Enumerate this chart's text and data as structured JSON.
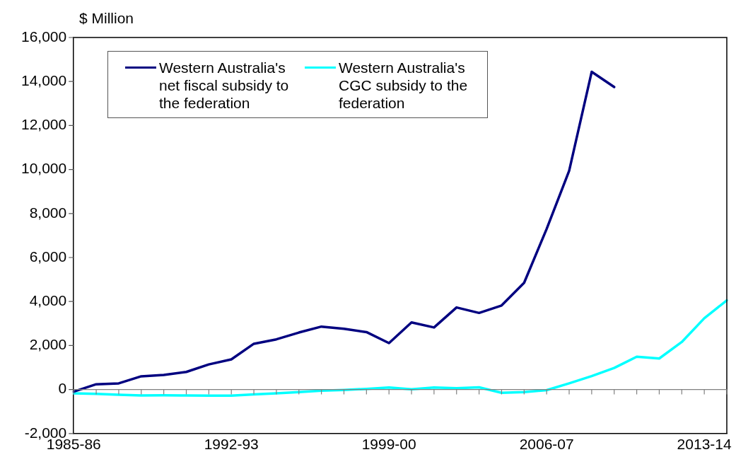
{
  "chart_data": {
    "type": "line",
    "ylabel": "$ Million",
    "categories": [
      "1985-86",
      null,
      null,
      null,
      null,
      null,
      null,
      "1992-93",
      null,
      null,
      null,
      null,
      null,
      null,
      "1999-00",
      null,
      null,
      null,
      null,
      null,
      null,
      "2006-07",
      null,
      null,
      null,
      null,
      null,
      null,
      "2013-14",
      null
    ],
    "series": [
      {
        "name": "Western Australia's net fiscal subsidy to the federation",
        "color": "#000080",
        "values": [
          -100,
          240,
          280,
          600,
          660,
          800,
          1140,
          1370,
          2080,
          2280,
          2590,
          2860,
          2760,
          2610,
          2110,
          3050,
          2820,
          3730,
          3480,
          3820,
          4850,
          7300,
          9940,
          14440,
          13750,
          null,
          null,
          null,
          null,
          null
        ]
      },
      {
        "name": "Western Australia's CGC subsidy to the federation",
        "color": "#00ffff",
        "values": [
          -170,
          -200,
          -240,
          -270,
          -260,
          -270,
          -280,
          -280,
          -220,
          -170,
          -120,
          -50,
          -20,
          30,
          90,
          10,
          90,
          60,
          100,
          -150,
          -120,
          -30,
          280,
          610,
          980,
          1490,
          1410,
          2160,
          3240,
          4050
        ]
      }
    ],
    "ylim": [
      -2000,
      16000
    ],
    "yticks": [
      {
        "value": -2000,
        "label": "-2,000"
      },
      0,
      {
        "value": 2000,
        "label": "2,000"
      },
      {
        "value": 4000,
        "label": "4,000"
      },
      {
        "value": 6000,
        "label": "6,000"
      },
      {
        "value": 8000,
        "label": "8,000"
      },
      {
        "value": 10000,
        "label": "10,000"
      },
      {
        "value": 12000,
        "label": "12,000"
      },
      {
        "value": 14000,
        "label": "14,000"
      },
      {
        "value": 16000,
        "label": "16,000"
      }
    ],
    "grid": false,
    "ref_lines": [
      {
        "axis": "y",
        "value": 0,
        "color": "#808080"
      }
    ],
    "legend": "top left",
    "marker": "none",
    "line_style": "solid"
  }
}
